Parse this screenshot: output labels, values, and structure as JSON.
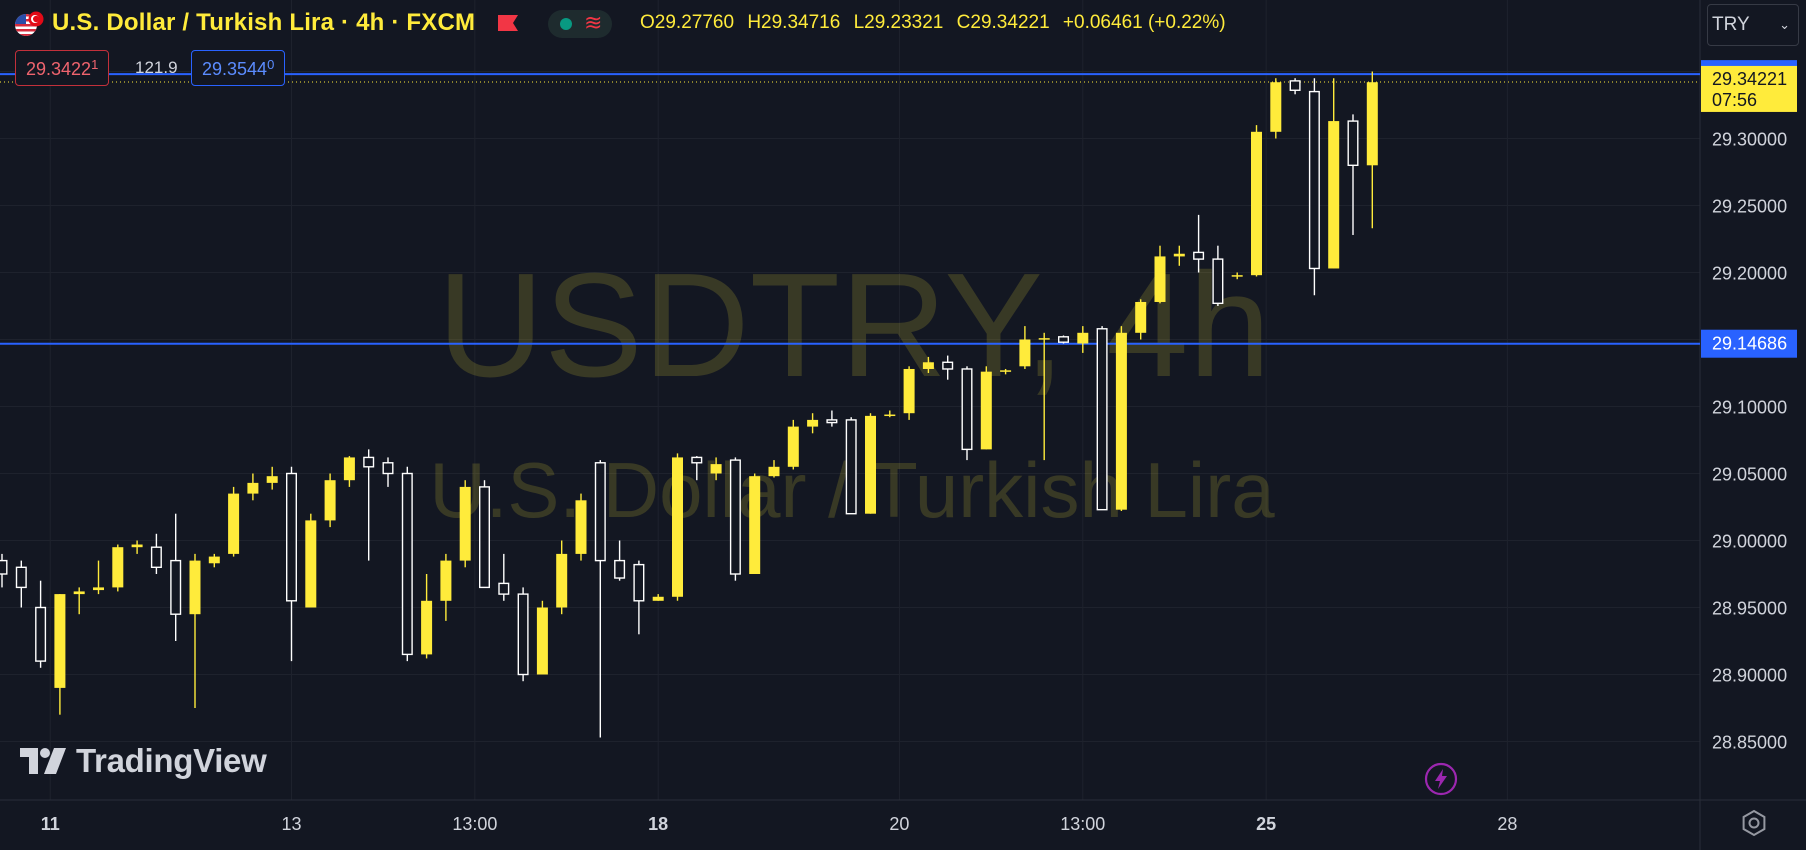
{
  "header": {
    "title": "U.S. Dollar / Turkish Lira · 4h · FXCM",
    "ohlc": {
      "open": "O29.27760",
      "high": "H29.34716",
      "low": "L29.23321",
      "close": "C29.34221",
      "change": "+0.06461 (+0.22%)"
    },
    "bid_price": "29.3422",
    "bid_sup": "1",
    "spread": "121.9",
    "ask_price": "29.3544",
    "ask_sup": "0",
    "currency_select": "TRY",
    "icons": [
      "us-flag-icon",
      "tr-flag-icon",
      "red-flag-icon",
      "market-status-dot-icon",
      "wave-icon",
      "chevron-down-icon",
      "tradingview-logo-icon",
      "lightning-icon",
      "settings-icon"
    ]
  },
  "watermark": {
    "symbol": "USDTRY, 4h",
    "name": "U.S. Dollar / Turkish Lira"
  },
  "branding": {
    "logo_text": "TradingView"
  },
  "colors": {
    "background": "#131722",
    "up_candle": "#ffeb3b",
    "down_candle_border": "#ffffff",
    "line_blue": "#2962ff",
    "grid": "#1e222d",
    "axis_text": "#d1d4dc"
  },
  "chart_data": {
    "type": "candlestick",
    "interval": "4h",
    "ylim": [
      28.805,
      29.385
    ],
    "price_labels": [
      "29.30000",
      "29.25000",
      "29.20000",
      "29.10000",
      "29.05000",
      "29.00000",
      "28.95000",
      "28.90000",
      "28.85000"
    ],
    "x_labels": [
      {
        "label": "11",
        "bold": true,
        "candle_index": 2.5
      },
      {
        "label": "13",
        "bold": false,
        "candle_index": 15
      },
      {
        "label": "13:00",
        "bold": false,
        "candle_index": 24.5
      },
      {
        "label": "18",
        "bold": true,
        "candle_index": 34
      },
      {
        "label": "20",
        "bold": false,
        "candle_index": 46.5
      },
      {
        "label": "13:00",
        "bold": false,
        "candle_index": 56
      },
      {
        "label": "25",
        "bold": true,
        "candle_index": 65.5
      },
      {
        "label": "28",
        "bold": false,
        "candle_index": 78
      }
    ],
    "horizontal_lines": [
      {
        "price": 29.34805,
        "label": "29.34805",
        "color": "#2962ff"
      },
      {
        "price": 29.14686,
        "label": "29.14686",
        "color": "#2962ff"
      }
    ],
    "last_price": {
      "price": 29.34221,
      "label": "29.34221",
      "countdown": "07:56",
      "color": "#ffeb3b"
    },
    "candles": [
      [
        28.985,
        28.99,
        28.965,
        28.975
      ],
      [
        28.98,
        28.985,
        28.95,
        28.965
      ],
      [
        28.95,
        28.97,
        28.905,
        28.91
      ],
      [
        28.89,
        28.96,
        28.87,
        28.96
      ],
      [
        28.96,
        28.965,
        28.945,
        28.962
      ],
      [
        28.963,
        28.985,
        28.96,
        28.965
      ],
      [
        28.965,
        28.997,
        28.962,
        28.995
      ],
      [
        28.995,
        29.0,
        28.99,
        28.997
      ],
      [
        28.995,
        29.005,
        28.975,
        28.98
      ],
      [
        28.985,
        29.02,
        28.925,
        28.945
      ],
      [
        28.945,
        28.99,
        28.875,
        28.985
      ],
      [
        28.983,
        28.99,
        28.98,
        28.988
      ],
      [
        28.99,
        29.04,
        28.988,
        29.035
      ],
      [
        29.035,
        29.05,
        29.03,
        29.043
      ],
      [
        29.043,
        29.055,
        29.038,
        29.048
      ],
      [
        29.05,
        29.055,
        28.91,
        28.955
      ],
      [
        28.95,
        29.02,
        28.95,
        29.015
      ],
      [
        29.015,
        29.05,
        29.01,
        29.045
      ],
      [
        29.045,
        29.063,
        29.04,
        29.062
      ],
      [
        29.062,
        29.068,
        28.985,
        29.055
      ],
      [
        29.058,
        29.062,
        29.04,
        29.05
      ],
      [
        29.05,
        29.055,
        28.91,
        28.915
      ],
      [
        28.915,
        28.975,
        28.912,
        28.955
      ],
      [
        28.955,
        28.99,
        28.94,
        28.985
      ],
      [
        28.985,
        29.045,
        28.98,
        29.04
      ],
      [
        29.04,
        29.045,
        28.965,
        28.965
      ],
      [
        28.968,
        28.99,
        28.955,
        28.96
      ],
      [
        28.96,
        28.965,
        28.895,
        28.9
      ],
      [
        28.9,
        28.955,
        28.9,
        28.95
      ],
      [
        28.95,
        29.0,
        28.945,
        28.99
      ],
      [
        28.99,
        29.035,
        28.985,
        29.03
      ],
      [
        29.058,
        29.06,
        28.853,
        28.985
      ],
      [
        28.985,
        29.0,
        28.97,
        28.972
      ],
      [
        28.982,
        28.985,
        28.93,
        28.955
      ],
      [
        28.955,
        28.96,
        28.955,
        28.958
      ],
      [
        28.958,
        29.065,
        28.955,
        29.062
      ],
      [
        29.062,
        29.063,
        29.045,
        29.058
      ],
      [
        29.05,
        29.062,
        29.045,
        29.057
      ],
      [
        29.06,
        29.062,
        28.97,
        28.975
      ],
      [
        28.975,
        29.05,
        28.975,
        29.048
      ],
      [
        29.048,
        29.06,
        29.047,
        29.055
      ],
      [
        29.055,
        29.09,
        29.053,
        29.085
      ],
      [
        29.085,
        29.095,
        29.08,
        29.09
      ],
      [
        29.09,
        29.097,
        29.085,
        29.088
      ],
      [
        29.09,
        29.092,
        29.02,
        29.02
      ],
      [
        29.02,
        29.095,
        29.02,
        29.093
      ],
      [
        29.093,
        29.097,
        29.092,
        29.094
      ],
      [
        29.095,
        29.13,
        29.09,
        29.128
      ],
      [
        29.128,
        29.137,
        29.125,
        29.133
      ],
      [
        29.133,
        29.138,
        29.12,
        29.128
      ],
      [
        29.128,
        29.13,
        29.06,
        29.068
      ],
      [
        29.068,
        29.13,
        29.068,
        29.126
      ],
      [
        29.126,
        29.128,
        29.124,
        29.127
      ],
      [
        29.13,
        29.16,
        29.128,
        29.15
      ],
      [
        29.15,
        29.155,
        29.06,
        29.151
      ],
      [
        29.152,
        29.153,
        29.147,
        29.148
      ],
      [
        29.147,
        29.16,
        29.14,
        29.155
      ],
      [
        29.158,
        29.16,
        29.023,
        29.023
      ],
      [
        29.023,
        29.16,
        29.022,
        29.155
      ],
      [
        29.155,
        29.18,
        29.15,
        29.178
      ],
      [
        29.178,
        29.22,
        29.177,
        29.212
      ],
      [
        29.212,
        29.22,
        29.205,
        29.214
      ],
      [
        29.215,
        29.243,
        29.2,
        29.21
      ],
      [
        29.21,
        29.22,
        29.175,
        29.177
      ],
      [
        29.197,
        29.2,
        29.195,
        29.198
      ],
      [
        29.198,
        29.31,
        29.197,
        29.305
      ],
      [
        29.305,
        29.345,
        29.3,
        29.342
      ],
      [
        29.343,
        29.345,
        29.333,
        29.336
      ],
      [
        29.335,
        29.345,
        29.183,
        29.203
      ],
      [
        29.203,
        29.345,
        29.203,
        29.313
      ],
      [
        29.313,
        29.318,
        29.228,
        29.28
      ],
      [
        29.28,
        29.35,
        29.233,
        29.342
      ]
    ]
  }
}
